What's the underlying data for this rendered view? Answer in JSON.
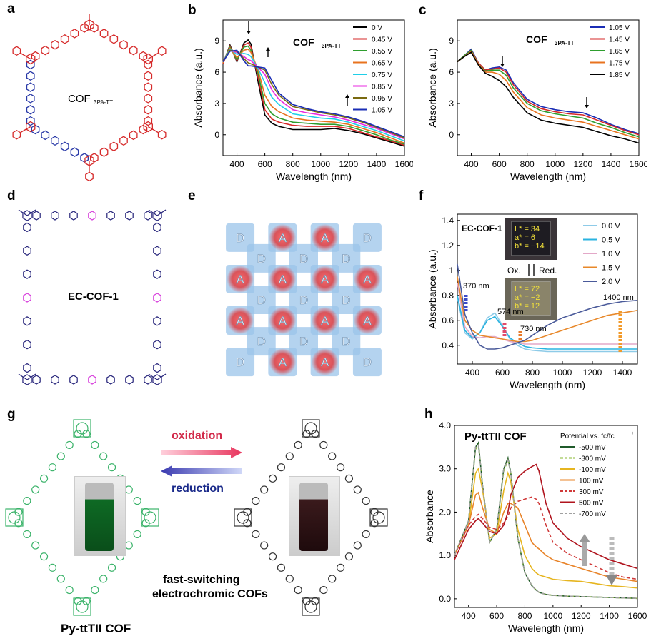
{
  "panel_letters": [
    "a",
    "b",
    "c",
    "d",
    "e",
    "f",
    "g",
    "h"
  ],
  "structure_labels": {
    "a": "COF",
    "a_sub": "3PA-TT",
    "d": "EC-COF-1",
    "e_donor": "D",
    "e_acceptor": "A",
    "g_oxidation": "oxidation",
    "g_reduction": "reduction",
    "g_caption_1": "fast-switching",
    "g_caption_2": "electrochromic COFs",
    "g_name": "Py-ttTII COF"
  },
  "colors": {
    "red_frame": "#d62a2a",
    "blue_frame": "#2a3aa8",
    "green_frame": "#3bb36a",
    "magenta": "#d63adb",
    "navy": "#25237a"
  },
  "chart_data": [
    {
      "id": "b",
      "type": "line",
      "title": "COF",
      "title_sub": "3PA-TT",
      "xlabel": "Wavelength (nm)",
      "ylabel": "Absorbance (a.u.)",
      "xlim": [
        300,
        1600
      ],
      "ylim": [
        -2,
        11
      ],
      "xticks": [
        400,
        600,
        800,
        1000,
        1200,
        1400,
        1600
      ],
      "yticks": [
        0,
        3,
        6,
        9
      ],
      "legend_position": "top-right",
      "x": [
        300,
        350,
        400,
        450,
        480,
        500,
        550,
        600,
        650,
        700,
        800,
        900,
        1000,
        1100,
        1200,
        1300,
        1400,
        1500,
        1600
      ],
      "series": [
        {
          "name": "0 V",
          "color": "#000000",
          "values": [
            6.8,
            8.6,
            7.0,
            8.8,
            9.1,
            8.7,
            5.2,
            1.9,
            1.1,
            0.8,
            0.5,
            0.5,
            0.5,
            0.6,
            0.4,
            0.1,
            -0.3,
            -0.7,
            -1.1
          ]
        },
        {
          "name": "0.45 V",
          "color": "#d62828",
          "values": [
            6.8,
            8.5,
            7.1,
            8.6,
            8.8,
            8.4,
            5.6,
            2.4,
            1.5,
            1.2,
            0.9,
            0.8,
            0.8,
            0.8,
            0.6,
            0.2,
            -0.2,
            -0.6,
            -1.0
          ]
        },
        {
          "name": "0.55 V",
          "color": "#2e9e2e",
          "values": [
            6.9,
            8.4,
            7.2,
            8.4,
            8.5,
            8.1,
            6.0,
            3.0,
            2.0,
            1.6,
            1.2,
            1.1,
            1.0,
            1.0,
            0.8,
            0.4,
            0.0,
            -0.5,
            -0.9
          ]
        },
        {
          "name": "0.65 V",
          "color": "#e8731f",
          "values": [
            6.9,
            8.3,
            7.4,
            8.1,
            8.2,
            7.9,
            6.3,
            3.8,
            2.7,
            2.2,
            1.6,
            1.4,
            1.3,
            1.2,
            1.0,
            0.6,
            0.2,
            -0.3,
            -0.8
          ]
        },
        {
          "name": "0.75 V",
          "color": "#1fcfe8",
          "values": [
            7.0,
            8.2,
            7.7,
            7.8,
            7.7,
            7.5,
            6.4,
            5.0,
            3.6,
            2.9,
            2.0,
            1.8,
            1.6,
            1.5,
            1.2,
            0.8,
            0.4,
            -0.1,
            -0.6
          ]
        },
        {
          "name": "0.85 V",
          "color": "#e82be0",
          "values": [
            7.0,
            8.1,
            7.9,
            7.5,
            7.2,
            7.1,
            6.5,
            5.8,
            4.3,
            3.4,
            2.4,
            2.1,
            1.9,
            1.7,
            1.4,
            1.0,
            0.6,
            0.1,
            -0.4
          ]
        },
        {
          "name": "0.95 V",
          "color": "#7a6a10",
          "values": [
            7.0,
            8.1,
            8.0,
            7.3,
            6.9,
            6.8,
            6.5,
            6.2,
            4.8,
            3.8,
            2.7,
            2.4,
            2.1,
            1.9,
            1.6,
            1.2,
            0.7,
            0.2,
            -0.3
          ]
        },
        {
          "name": "1.05 V",
          "color": "#1a2db5",
          "values": [
            7.0,
            8.0,
            8.1,
            7.1,
            6.6,
            6.6,
            6.5,
            6.4,
            5.2,
            4.0,
            2.9,
            2.5,
            2.2,
            2.0,
            1.7,
            1.3,
            0.8,
            0.3,
            -0.2
          ]
        }
      ]
    },
    {
      "id": "c",
      "type": "line",
      "title": "COF",
      "title_sub": "3PA-TT",
      "xlabel": "Wavelength (nm)",
      "ylabel": "Absorbance (a.u.)",
      "xlim": [
        300,
        1600
      ],
      "ylim": [
        -2,
        11
      ],
      "xticks": [
        400,
        600,
        800,
        1000,
        1200,
        1400,
        1600
      ],
      "yticks": [
        0,
        3,
        6,
        9
      ],
      "legend_position": "top-right",
      "x": [
        300,
        350,
        400,
        450,
        500,
        550,
        600,
        650,
        700,
        800,
        900,
        1000,
        1100,
        1200,
        1300,
        1400,
        1500,
        1600
      ],
      "series": [
        {
          "name": "1.05 V",
          "color": "#1a2db5",
          "values": [
            7.0,
            7.6,
            8.2,
            6.9,
            6.2,
            6.4,
            6.5,
            6.2,
            5.0,
            3.4,
            2.7,
            2.4,
            2.2,
            2.1,
            1.6,
            1.0,
            0.5,
            0.1
          ]
        },
        {
          "name": "1.45 V",
          "color": "#d62828",
          "values": [
            7.0,
            7.6,
            8.1,
            6.9,
            6.2,
            6.3,
            6.4,
            6.0,
            4.8,
            3.2,
            2.5,
            2.2,
            2.0,
            1.9,
            1.4,
            0.9,
            0.4,
            0.0
          ]
        },
        {
          "name": "1.65 V",
          "color": "#2e9e2e",
          "values": [
            7.0,
            7.6,
            8.1,
            6.8,
            6.1,
            6.2,
            6.2,
            5.7,
            4.5,
            3.0,
            2.3,
            2.0,
            1.8,
            1.6,
            1.1,
            0.7,
            0.2,
            -0.2
          ]
        },
        {
          "name": "1.75 V",
          "color": "#e8731f",
          "values": [
            7.0,
            7.5,
            8.0,
            6.8,
            6.0,
            6.0,
            5.8,
            5.2,
            4.1,
            2.6,
            1.9,
            1.6,
            1.4,
            1.2,
            0.8,
            0.4,
            0.0,
            -0.4
          ]
        },
        {
          "name": "1.85 V",
          "color": "#000000",
          "values": [
            7.0,
            7.5,
            7.9,
            6.7,
            5.9,
            5.6,
            5.2,
            4.6,
            3.6,
            2.1,
            1.4,
            1.1,
            0.9,
            0.7,
            0.3,
            -0.1,
            -0.4,
            -0.8
          ]
        }
      ]
    },
    {
      "id": "f",
      "type": "line",
      "title": "EC-COF-1",
      "xlabel": "Wavelength (nm)",
      "ylabel": "Absorbance (a.u.)",
      "xlim": [
        300,
        1500
      ],
      "ylim": [
        0.25,
        1.45
      ],
      "xticks": [
        400,
        600,
        800,
        1000,
        1200,
        1400
      ],
      "yticks": [
        0.4,
        0.6,
        0.8,
        1.0,
        1.2,
        1.4
      ],
      "legend_position": "top-right",
      "annotations": [
        "370 nm",
        "574 nm",
        "730 nm",
        "1400 nm",
        "Ox.",
        "Red."
      ],
      "inset_top": [
        "L* = 34",
        "a* = 6",
        "b* = −14"
      ],
      "inset_bottom": [
        "L* = 72",
        "a* = −2",
        "b* = 12"
      ],
      "x": [
        300,
        350,
        400,
        450,
        500,
        550,
        600,
        650,
        700,
        750,
        800,
        900,
        1000,
        1100,
        1200,
        1300,
        1400,
        1500
      ],
      "series": [
        {
          "name": "0.0 V",
          "color": "#8ecbe8",
          "values": [
            0.78,
            0.5,
            0.45,
            0.5,
            0.62,
            0.66,
            0.56,
            0.45,
            0.4,
            0.37,
            0.36,
            0.35,
            0.35,
            0.35,
            0.35,
            0.35,
            0.35,
            0.35
          ]
        },
        {
          "name": "0.5 V",
          "color": "#2ab3e0",
          "values": [
            0.8,
            0.52,
            0.46,
            0.5,
            0.6,
            0.63,
            0.55,
            0.46,
            0.42,
            0.39,
            0.38,
            0.37,
            0.37,
            0.37,
            0.37,
            0.37,
            0.37,
            0.37
          ]
        },
        {
          "name": "1.0 V",
          "color": "#e3a8c8",
          "values": [
            0.9,
            0.55,
            0.47,
            0.46,
            0.47,
            0.47,
            0.45,
            0.43,
            0.42,
            0.41,
            0.41,
            0.41,
            0.41,
            0.41,
            0.41,
            0.41,
            0.41,
            0.41
          ]
        },
        {
          "name": "1.5 V",
          "color": "#e8882a",
          "values": [
            0.95,
            0.6,
            0.52,
            0.48,
            0.47,
            0.46,
            0.45,
            0.44,
            0.43,
            0.43,
            0.44,
            0.48,
            0.52,
            0.56,
            0.6,
            0.64,
            0.66,
            0.68
          ]
        },
        {
          "name": "2.0 V",
          "color": "#4a5a9a",
          "values": [
            1.05,
            0.65,
            0.5,
            0.4,
            0.37,
            0.37,
            0.38,
            0.4,
            0.42,
            0.44,
            0.48,
            0.56,
            0.62,
            0.66,
            0.7,
            0.73,
            0.75,
            0.76
          ]
        }
      ]
    },
    {
      "id": "h",
      "type": "line",
      "title": "Py-ttTII COF",
      "legend_title": "Potential vs. fc/fc",
      "legend_title_sup": "+",
      "xlabel": "Wavelength (nm)",
      "ylabel": "Absorbance",
      "xlim": [
        300,
        1600
      ],
      "ylim": [
        -0.2,
        4.0
      ],
      "xticks": [
        400,
        600,
        800,
        1000,
        1200,
        1400,
        1600
      ],
      "yticks": [
        0.0,
        1.0,
        2.0,
        3.0,
        4.0
      ],
      "ytick_labels": [
        "0.0",
        "1.0",
        "2.0",
        "3.0",
        "4.0"
      ],
      "legend_position": "top-right",
      "x": [
        300,
        400,
        450,
        470,
        500,
        550,
        600,
        650,
        680,
        700,
        750,
        800,
        850,
        880,
        900,
        950,
        1000,
        1100,
        1200,
        1300,
        1400,
        1500,
        1600
      ],
      "series": [
        {
          "name": "-500 mV",
          "color": "#1f5a2a",
          "dash": false,
          "values": [
            1.0,
            1.8,
            3.5,
            3.6,
            2.6,
            1.3,
            1.6,
            3.0,
            3.25,
            2.9,
            1.4,
            0.6,
            0.3,
            0.2,
            0.15,
            0.1,
            0.08,
            0.06,
            0.05,
            0.04,
            0.03,
            0.02,
            0.01
          ]
        },
        {
          "name": "-300 mV",
          "color": "#8ab832",
          "dash": true,
          "values": [
            1.0,
            1.8,
            3.45,
            3.55,
            2.6,
            1.3,
            1.6,
            2.95,
            3.2,
            2.9,
            1.4,
            0.6,
            0.3,
            0.2,
            0.15,
            0.1,
            0.08,
            0.06,
            0.05,
            0.04,
            0.03,
            0.02,
            0.01
          ]
        },
        {
          "name": "-100 mV",
          "color": "#e6b520",
          "dash": false,
          "values": [
            1.0,
            1.7,
            2.9,
            3.0,
            2.5,
            1.4,
            1.5,
            2.5,
            2.9,
            2.7,
            1.6,
            1.0,
            0.7,
            0.6,
            0.55,
            0.5,
            0.45,
            0.42,
            0.4,
            0.35,
            0.3,
            0.28,
            0.25
          ]
        },
        {
          "name": "100 mV",
          "color": "#e8842a",
          "dash": false,
          "values": [
            1.0,
            1.7,
            2.4,
            2.45,
            2.1,
            1.6,
            1.5,
            2.0,
            2.2,
            2.2,
            2.1,
            1.7,
            1.3,
            1.2,
            1.15,
            1.0,
            0.9,
            0.8,
            0.7,
            0.6,
            0.5,
            0.45,
            0.4
          ]
        },
        {
          "name": "300 mV",
          "color": "#d03a3a",
          "dash": true,
          "values": [
            1.0,
            1.7,
            1.9,
            1.95,
            1.85,
            1.65,
            1.6,
            1.75,
            1.9,
            2.1,
            2.25,
            2.3,
            2.35,
            2.3,
            2.2,
            1.7,
            1.3,
            1.05,
            0.9,
            0.75,
            0.6,
            0.5,
            0.45
          ]
        },
        {
          "name": "500 mV",
          "color": "#b0141e",
          "dash": false,
          "values": [
            0.9,
            1.6,
            1.8,
            1.85,
            1.75,
            1.55,
            1.5,
            1.7,
            2.0,
            2.4,
            2.8,
            2.95,
            3.05,
            3.1,
            2.95,
            2.2,
            1.75,
            1.4,
            1.2,
            1.05,
            0.9,
            0.8,
            0.7
          ]
        },
        {
          "name": "-700 mV",
          "color": "#a0a0a0",
          "dash": true,
          "values": [
            1.0,
            1.8,
            3.5,
            3.55,
            2.6,
            1.3,
            1.6,
            3.0,
            3.2,
            2.9,
            1.4,
            0.6,
            0.3,
            0.2,
            0.15,
            0.1,
            0.08,
            0.06,
            0.05,
            0.04,
            0.03,
            0.02,
            0.01
          ]
        }
      ]
    }
  ]
}
